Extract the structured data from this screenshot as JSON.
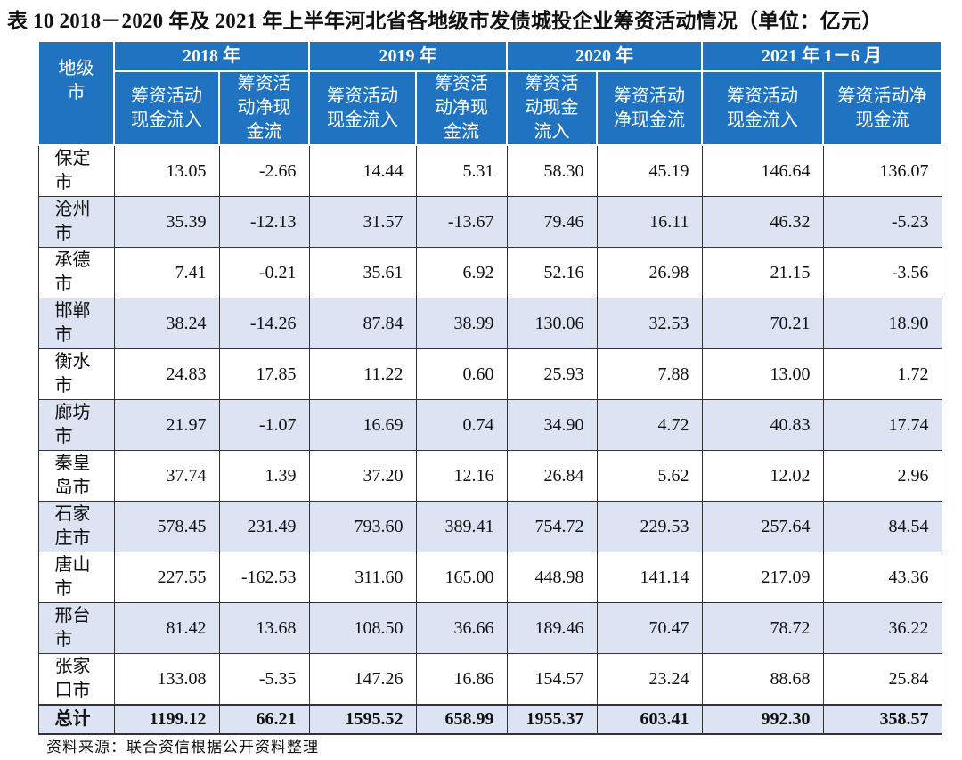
{
  "title": "表 10   2018－2020 年及 2021 年上半年河北省各地级市发债城投企业筹资活动情况（单位：亿元）",
  "header": {
    "city_label": "地级\n市",
    "years": [
      "2018 年",
      "2019 年",
      "2020 年",
      "2021 年 1－6 月"
    ],
    "sub": [
      [
        "筹资活动\n现金流入",
        "筹资活\n动净现\n金流"
      ],
      [
        "筹资活动\n现金流入",
        "筹资活\n动净现\n金流"
      ],
      [
        "筹资活\n动现金\n流入",
        "筹资活动\n净现金流"
      ],
      [
        "筹资活动\n现金流入",
        "筹资活动净\n现金流"
      ]
    ]
  },
  "rows": [
    {
      "city": "保定\n市",
      "values": [
        "13.05",
        "-2.66",
        "14.44",
        "5.31",
        "58.30",
        "45.19",
        "146.64",
        "136.07"
      ]
    },
    {
      "city": "沧州\n市",
      "values": [
        "35.39",
        "-12.13",
        "31.57",
        "-13.67",
        "79.46",
        "16.11",
        "46.32",
        "-5.23"
      ]
    },
    {
      "city": "承德\n市",
      "values": [
        "7.41",
        "-0.21",
        "35.61",
        "6.92",
        "52.16",
        "26.98",
        "21.15",
        "-3.56"
      ]
    },
    {
      "city": "邯郸\n市",
      "values": [
        "38.24",
        "-14.26",
        "87.84",
        "38.99",
        "130.06",
        "32.53",
        "70.21",
        "18.90"
      ]
    },
    {
      "city": "衡水\n市",
      "values": [
        "24.83",
        "17.85",
        "11.22",
        "0.60",
        "25.93",
        "7.88",
        "13.00",
        "1.72"
      ]
    },
    {
      "city": "廊坊\n市",
      "values": [
        "21.97",
        "-1.07",
        "16.69",
        "0.74",
        "34.90",
        "4.72",
        "40.83",
        "17.74"
      ]
    },
    {
      "city": "秦皇\n岛市",
      "values": [
        "37.74",
        "1.39",
        "37.20",
        "12.16",
        "26.84",
        "5.62",
        "12.02",
        "2.96"
      ]
    },
    {
      "city": "石家\n庄市",
      "values": [
        "578.45",
        "231.49",
        "793.60",
        "389.41",
        "754.72",
        "229.53",
        "257.64",
        "84.54"
      ]
    },
    {
      "city": "唐山\n市",
      "values": [
        "227.55",
        "-162.53",
        "311.60",
        "165.00",
        "448.98",
        "141.14",
        "217.09",
        "43.36"
      ]
    },
    {
      "city": "邢台\n市",
      "values": [
        "81.42",
        "13.68",
        "108.50",
        "36.66",
        "189.46",
        "70.47",
        "78.72",
        "36.22"
      ]
    },
    {
      "city": "张家\n口市",
      "values": [
        "133.08",
        "-5.35",
        "147.26",
        "16.86",
        "154.57",
        "23.24",
        "88.68",
        "25.84"
      ]
    }
  ],
  "total": {
    "city": "总计",
    "values": [
      "1199.12",
      "66.21",
      "1595.52",
      "658.99",
      "1955.37",
      "603.41",
      "992.30",
      "358.57"
    ]
  },
  "source": "资料来源：联合资信根据公开资料整理",
  "colors": {
    "header_bg": "#1f73c0",
    "alt_row_bg": "#dce3f2"
  }
}
